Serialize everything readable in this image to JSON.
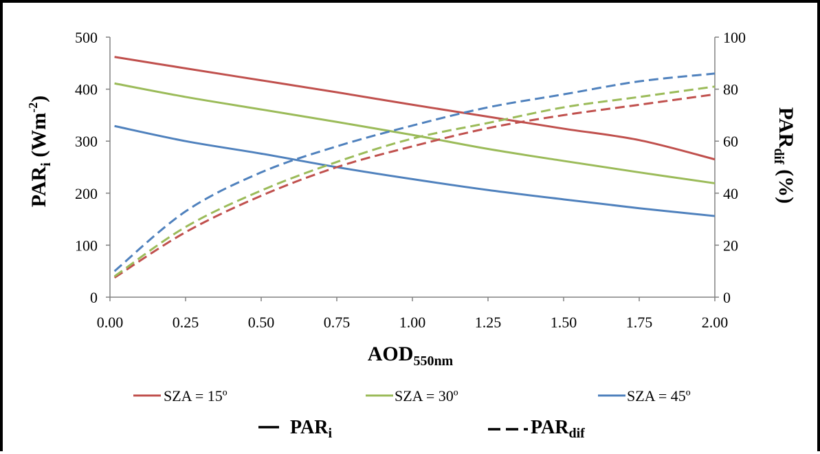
{
  "chart_data": {
    "type": "line",
    "x": [
      0.0,
      0.25,
      0.5,
      0.75,
      1.0,
      1.25,
      1.5,
      1.75,
      2.0
    ],
    "xlim": [
      0,
      2
    ],
    "xticks": [
      "0.00",
      "0.25",
      "0.50",
      "0.75",
      "1.00",
      "1.25",
      "1.50",
      "1.75",
      "2.00"
    ],
    "xlabel": {
      "main": "AOD",
      "sub": "550nm"
    },
    "ylabel_left": {
      "main": "PAR",
      "sub": "i",
      "rest": " (Wm",
      "sup": "-2",
      "end": ")"
    },
    "ylabel_right": {
      "main": "PAR",
      "sub": "dif",
      "rest": " (%)"
    },
    "ylim_left": [
      0,
      500
    ],
    "ylim_right": [
      0,
      100
    ],
    "yticks_left": [
      "0",
      "100",
      "200",
      "300",
      "400",
      "500"
    ],
    "yticks_right": [
      "0",
      "20",
      "40",
      "60",
      "80",
      "100"
    ],
    "grid": false,
    "legend_placement": "bottom",
    "series": [
      {
        "name": "SZA = 15º",
        "color": "#c0504d",
        "metric": "PARi",
        "axis": "left",
        "style": "solid",
        "values": [
          462,
          440,
          417,
          394,
          370,
          347,
          324,
          302,
          265
        ]
      },
      {
        "name": "SZA = 30º",
        "color": "#9bbb59",
        "metric": "PARi",
        "axis": "left",
        "style": "solid",
        "values": [
          411,
          385,
          361,
          337,
          312,
          285,
          262,
          240,
          219
        ]
      },
      {
        "name": "SZA = 45º",
        "color": "#4f81bd",
        "metric": "PARi",
        "axis": "left",
        "style": "solid",
        "values": [
          329,
          300,
          276,
          250,
          227,
          206,
          188,
          171,
          156
        ]
      },
      {
        "name": "SZA = 15º",
        "color": "#c0504d",
        "metric": "PARdif",
        "axis": "right",
        "style": "dashed",
        "values": [
          7.5,
          25,
          39,
          50,
          58,
          65,
          70,
          74,
          78
        ]
      },
      {
        "name": "SZA = 30º",
        "color": "#9bbb59",
        "metric": "PARdif",
        "axis": "right",
        "style": "dashed",
        "values": [
          8,
          27,
          41,
          52,
          61,
          67,
          73,
          77,
          81
        ]
      },
      {
        "name": "SZA = 45º",
        "color": "#4f81bd",
        "metric": "PARdif",
        "axis": "right",
        "style": "dashed",
        "values": [
          10,
          33,
          48,
          58,
          66,
          73,
          78,
          83,
          86
        ]
      }
    ],
    "legend": {
      "sza_entries": [
        {
          "label": "SZA = 15º",
          "color": "#c0504d"
        },
        {
          "label": "SZA = 30º",
          "color": "#9bbb59"
        },
        {
          "label": "SZA = 45º",
          "color": "#4f81bd"
        }
      ],
      "style_entries": [
        {
          "main": "PAR",
          "sub": "i",
          "style": "solid"
        },
        {
          "main": "PAR",
          "sub": "dif",
          "style": "dashed"
        }
      ]
    }
  }
}
